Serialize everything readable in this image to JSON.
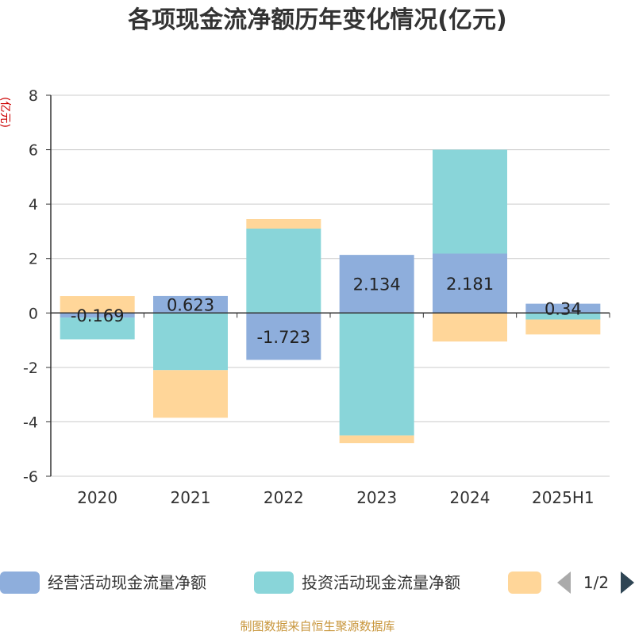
{
  "title": "各项现金流净额历年变化情况(亿元)",
  "source": "制图数据来自恒生聚源数据库",
  "chart_data": {
    "type": "bar",
    "stacked": true,
    "unit_label": "(亿元)",
    "categories": [
      "2020",
      "2021",
      "2022",
      "2023",
      "2024",
      "2025H1"
    ],
    "ylim": [
      -6,
      8
    ],
    "yticks": [
      -6,
      -4,
      -2,
      0,
      2,
      4,
      6,
      8
    ],
    "grid": true,
    "series": [
      {
        "name": "经营活动现金流量净额",
        "color": "#8eaedc",
        "values": [
          -0.169,
          0.623,
          -1.723,
          2.134,
          2.181,
          0.34
        ],
        "labels": [
          "-0.169",
          "0.623",
          "-1.723",
          "2.134",
          "2.181",
          "0.34"
        ]
      },
      {
        "name": "投资活动现金流量净额",
        "color": "#89d5d9",
        "values": [
          -0.8,
          -2.1,
          3.1,
          -4.5,
          3.82,
          -0.24
        ]
      },
      {
        "name": "",
        "color": "#ffd699",
        "values": [
          0.62,
          -1.75,
          0.35,
          -0.28,
          -1.05,
          -0.55
        ]
      }
    ],
    "legend": {
      "position": "bottom",
      "page": "1/2"
    }
  }
}
